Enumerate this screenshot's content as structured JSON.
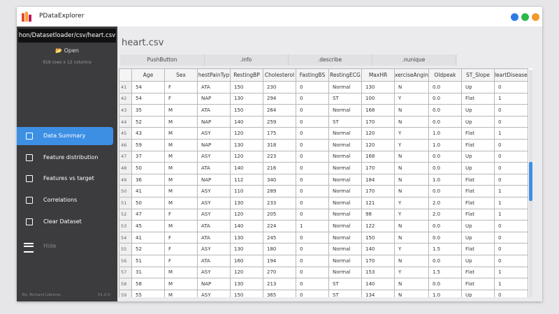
{
  "window": {
    "title": "PDataExplorer"
  },
  "sidebar": {
    "path": "hon/Datasetloader/csv/heart.csv",
    "open_button": "Open",
    "info": "918 rows x 12 columns",
    "nav": [
      "Data Summary",
      "Feature distribution",
      "Features vs target",
      "Correlations",
      "Clear Dataset"
    ],
    "hide": "Hide",
    "author": "By: Richard Libreros",
    "version": "V1.0.0"
  },
  "main": {
    "title": "heart.csv",
    "tabs": [
      "PushButton",
      ".info",
      ".describe",
      ".nunique"
    ],
    "table": {
      "headers": [
        "Age",
        "Sex",
        "hestPainTyp",
        "RestingBP",
        "Cholesterol",
        "FastingBS",
        "RestingECG",
        "MaxHR",
        "xerciseAngin",
        "Oldpeak",
        "ST_Slope",
        "leartDisease"
      ],
      "rows": [
        [
          "41",
          "54",
          "F",
          "ATA",
          "150",
          "230",
          "0",
          "Normal",
          "130",
          "N",
          "0.0",
          "Up",
          "0"
        ],
        [
          "42",
          "54",
          "F",
          "NAP",
          "130",
          "294",
          "0",
          "ST",
          "100",
          "Y",
          "0.0",
          "Flat",
          "1"
        ],
        [
          "43",
          "35",
          "M",
          "ATA",
          "150",
          "264",
          "0",
          "Normal",
          "168",
          "N",
          "0.0",
          "Up",
          "0"
        ],
        [
          "44",
          "52",
          "M",
          "NAP",
          "140",
          "259",
          "0",
          "ST",
          "170",
          "N",
          "0.0",
          "Up",
          "0"
        ],
        [
          "45",
          "43",
          "M",
          "ASY",
          "120",
          "175",
          "0",
          "Normal",
          "120",
          "Y",
          "1.0",
          "Flat",
          "1"
        ],
        [
          "46",
          "59",
          "M",
          "NAP",
          "130",
          "318",
          "0",
          "Normal",
          "120",
          "Y",
          "1.0",
          "Flat",
          "0"
        ],
        [
          "47",
          "37",
          "M",
          "ASY",
          "120",
          "223",
          "0",
          "Normal",
          "168",
          "N",
          "0.0",
          "Up",
          "0"
        ],
        [
          "48",
          "50",
          "M",
          "ATA",
          "140",
          "216",
          "0",
          "Normal",
          "170",
          "N",
          "0.0",
          "Up",
          "0"
        ],
        [
          "49",
          "36",
          "M",
          "NAP",
          "112",
          "340",
          "0",
          "Normal",
          "184",
          "N",
          "1.0",
          "Flat",
          "0"
        ],
        [
          "50",
          "41",
          "M",
          "ASY",
          "110",
          "289",
          "0",
          "Normal",
          "170",
          "N",
          "0.0",
          "Flat",
          "1"
        ],
        [
          "51",
          "50",
          "M",
          "ASY",
          "130",
          "233",
          "0",
          "Normal",
          "121",
          "Y",
          "2.0",
          "Flat",
          "1"
        ],
        [
          "52",
          "47",
          "F",
          "ASY",
          "120",
          "205",
          "0",
          "Normal",
          "98",
          "Y",
          "2.0",
          "Flat",
          "1"
        ],
        [
          "53",
          "45",
          "M",
          "ATA",
          "140",
          "224",
          "1",
          "Normal",
          "122",
          "N",
          "0.0",
          "Up",
          "0"
        ],
        [
          "54",
          "41",
          "F",
          "ATA",
          "130",
          "245",
          "0",
          "Normal",
          "150",
          "N",
          "0.0",
          "Up",
          "0"
        ],
        [
          "55",
          "52",
          "F",
          "ASY",
          "130",
          "180",
          "0",
          "Normal",
          "140",
          "Y",
          "1.5",
          "Flat",
          "0"
        ],
        [
          "56",
          "51",
          "F",
          "ATA",
          "160",
          "194",
          "0",
          "Normal",
          "170",
          "N",
          "0.0",
          "Up",
          "0"
        ],
        [
          "57",
          "31",
          "M",
          "ASY",
          "120",
          "270",
          "0",
          "Normal",
          "153",
          "Y",
          "1.5",
          "Flat",
          "1"
        ],
        [
          "58",
          "58",
          "M",
          "NAP",
          "130",
          "213",
          "0",
          "ST",
          "140",
          "N",
          "0.0",
          "Flat",
          "1"
        ],
        [
          "59",
          "55",
          "M",
          "ASY",
          "150",
          "365",
          "0",
          "ST",
          "134",
          "N",
          "1.0",
          "Up",
          "0"
        ]
      ]
    }
  }
}
